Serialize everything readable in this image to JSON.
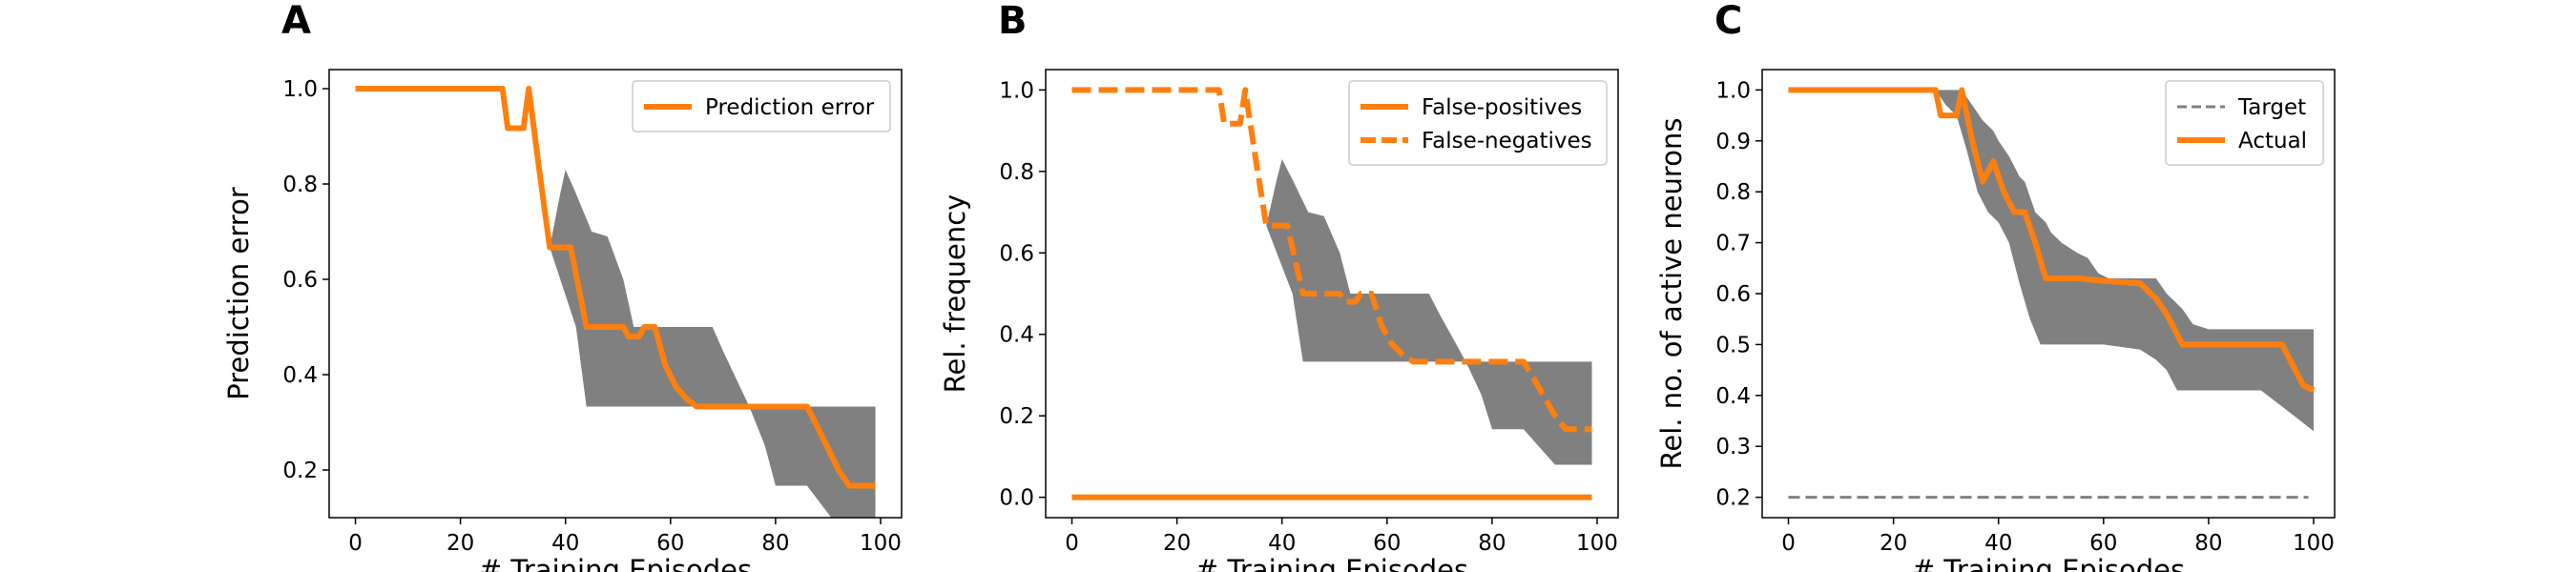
{
  "chart_data": [
    {
      "type": "line",
      "panel": "A",
      "xlabel": "# Training Episodes",
      "ylabel": "Prediction error",
      "xlim": [
        -5,
        104
      ],
      "ylim": [
        0.1,
        1.04
      ],
      "xticks": [
        0,
        20,
        40,
        60,
        80,
        100
      ],
      "xtick_labels": [
        "0",
        "20",
        "40",
        "60",
        "80",
        "100"
      ],
      "yticks": [
        0.2,
        0.4,
        0.6,
        0.8,
        1.0
      ],
      "ytick_labels": [
        "0.2",
        "0.4",
        "0.6",
        "0.8",
        "1.0"
      ],
      "legend_position": "top-right",
      "series": [
        {
          "name": "Prediction error",
          "color": "#ff7f0e",
          "style": "solid",
          "points": [
            [
              0,
              1.0
            ],
            [
              28,
              1.0
            ],
            [
              29,
              0.917
            ],
            [
              32,
              0.917
            ],
            [
              33,
              1.0
            ],
            [
              35,
              0.83
            ],
            [
              37,
              0.667
            ],
            [
              41,
              0.667
            ],
            [
              44,
              0.5
            ],
            [
              51,
              0.5
            ],
            [
              52,
              0.48
            ],
            [
              54,
              0.48
            ],
            [
              55,
              0.5
            ],
            [
              57,
              0.5
            ],
            [
              59,
              0.42
            ],
            [
              61,
              0.375
            ],
            [
              63,
              0.35
            ],
            [
              65,
              0.333
            ],
            [
              70,
              0.333
            ],
            [
              86,
              0.333
            ],
            [
              88,
              0.29
            ],
            [
              92,
              0.2
            ],
            [
              94,
              0.167
            ],
            [
              99,
              0.167
            ]
          ]
        }
      ],
      "bands": [
        {
          "color": "#808080",
          "upper": [
            [
              37,
              0.667
            ],
            [
              39,
              0.78
            ],
            [
              40,
              0.83
            ],
            [
              42,
              0.78
            ],
            [
              45,
              0.7
            ],
            [
              48,
              0.69
            ],
            [
              51,
              0.6
            ],
            [
              53,
              0.5
            ],
            [
              68,
              0.5
            ],
            [
              70,
              0.45
            ],
            [
              75,
              0.333
            ],
            [
              99,
              0.333
            ]
          ],
          "lower": [
            [
              37,
              0.667
            ],
            [
              42,
              0.5
            ],
            [
              44,
              0.333
            ],
            [
              75,
              0.333
            ],
            [
              78,
              0.25
            ],
            [
              80,
              0.167
            ],
            [
              86,
              0.167
            ],
            [
              92,
              0.08
            ],
            [
              99,
              0.08
            ]
          ]
        }
      ]
    },
    {
      "type": "line",
      "panel": "B",
      "xlabel": "# Training Episodes",
      "ylabel": "Rel. frequency",
      "xlim": [
        -5,
        104
      ],
      "ylim": [
        -0.05,
        1.05
      ],
      "xticks": [
        0,
        20,
        40,
        60,
        80,
        100
      ],
      "xtick_labels": [
        "0",
        "20",
        "40",
        "60",
        "80",
        "100"
      ],
      "yticks": [
        0.0,
        0.2,
        0.4,
        0.6,
        0.8,
        1.0
      ],
      "ytick_labels": [
        "0.0",
        "0.2",
        "0.4",
        "0.6",
        "0.8",
        "1.0"
      ],
      "legend_position": "top-right",
      "series": [
        {
          "name": "False-positives",
          "color": "#ff7f0e",
          "style": "solid",
          "points": [
            [
              0,
              0.0
            ],
            [
              99,
              0.0
            ]
          ]
        },
        {
          "name": "False-negatives",
          "color": "#ff7f0e",
          "style": "dashed",
          "points": [
            [
              0,
              1.0
            ],
            [
              28,
              1.0
            ],
            [
              29,
              0.917
            ],
            [
              32,
              0.917
            ],
            [
              33,
              1.0
            ],
            [
              35,
              0.83
            ],
            [
              37,
              0.667
            ],
            [
              41,
              0.667
            ],
            [
              44,
              0.5
            ],
            [
              51,
              0.5
            ],
            [
              52,
              0.48
            ],
            [
              54,
              0.48
            ],
            [
              55,
              0.5
            ],
            [
              57,
              0.5
            ],
            [
              59,
              0.42
            ],
            [
              61,
              0.375
            ],
            [
              63,
              0.35
            ],
            [
              65,
              0.333
            ],
            [
              70,
              0.333
            ],
            [
              86,
              0.333
            ],
            [
              88,
              0.29
            ],
            [
              92,
              0.2
            ],
            [
              94,
              0.167
            ],
            [
              99,
              0.167
            ]
          ]
        }
      ],
      "bands": [
        {
          "color": "#808080",
          "upper": [
            [
              37,
              0.667
            ],
            [
              39,
              0.78
            ],
            [
              40,
              0.83
            ],
            [
              42,
              0.78
            ],
            [
              45,
              0.7
            ],
            [
              48,
              0.69
            ],
            [
              51,
              0.6
            ],
            [
              53,
              0.5
            ],
            [
              68,
              0.5
            ],
            [
              70,
              0.45
            ],
            [
              75,
              0.333
            ],
            [
              99,
              0.333
            ]
          ],
          "lower": [
            [
              37,
              0.667
            ],
            [
              42,
              0.5
            ],
            [
              44,
              0.333
            ],
            [
              75,
              0.333
            ],
            [
              78,
              0.25
            ],
            [
              80,
              0.167
            ],
            [
              86,
              0.167
            ],
            [
              92,
              0.08
            ],
            [
              99,
              0.08
            ]
          ]
        }
      ]
    },
    {
      "type": "line",
      "panel": "C",
      "xlabel": "# Training Episodes",
      "ylabel": "Rel. no. of active neurons",
      "xlim": [
        -5,
        104
      ],
      "ylim": [
        0.16,
        1.04
      ],
      "xticks": [
        0,
        20,
        40,
        60,
        80,
        100
      ],
      "xtick_labels": [
        "0",
        "20",
        "40",
        "60",
        "80",
        "100"
      ],
      "yticks": [
        0.2,
        0.3,
        0.4,
        0.5,
        0.6,
        0.7,
        0.8,
        0.9,
        1.0
      ],
      "ytick_labels": [
        "0.2",
        "0.3",
        "0.4",
        "0.5",
        "0.6",
        "0.7",
        "0.8",
        "0.9",
        "1.0"
      ],
      "legend_position": "top-right",
      "series": [
        {
          "name": "Target",
          "color": "#808080",
          "style": "dashed-thin",
          "points": [
            [
              0,
              0.2
            ],
            [
              99,
              0.2
            ]
          ]
        },
        {
          "name": "Actual",
          "color": "#ff7f0e",
          "style": "solid",
          "points": [
            [
              0,
              1.0
            ],
            [
              28,
              1.0
            ],
            [
              29,
              0.95
            ],
            [
              32,
              0.95
            ],
            [
              33,
              1.0
            ],
            [
              35,
              0.9
            ],
            [
              37,
              0.82
            ],
            [
              39,
              0.86
            ],
            [
              41,
              0.8
            ],
            [
              43,
              0.76
            ],
            [
              45,
              0.76
            ],
            [
              47,
              0.7
            ],
            [
              49,
              0.63
            ],
            [
              55,
              0.63
            ],
            [
              60,
              0.625
            ],
            [
              67,
              0.62
            ],
            [
              70,
              0.59
            ],
            [
              72,
              0.56
            ],
            [
              75,
              0.5
            ],
            [
              80,
              0.5
            ],
            [
              90,
              0.5
            ],
            [
              94,
              0.5
            ],
            [
              96,
              0.46
            ],
            [
              98,
              0.42
            ],
            [
              100,
              0.41
            ]
          ]
        }
      ],
      "bands": [
        {
          "color": "#808080",
          "upper": [
            [
              28,
              1.0
            ],
            [
              31,
              1.0
            ],
            [
              33,
              1.0
            ],
            [
              35,
              0.97
            ],
            [
              37,
              0.94
            ],
            [
              39,
              0.92
            ],
            [
              40,
              0.9
            ],
            [
              42,
              0.87
            ],
            [
              44,
              0.83
            ],
            [
              45,
              0.82
            ],
            [
              47,
              0.76
            ],
            [
              49,
              0.74
            ],
            [
              50,
              0.72
            ],
            [
              52,
              0.7
            ],
            [
              55,
              0.68
            ],
            [
              57,
              0.67
            ],
            [
              59,
              0.64
            ],
            [
              61,
              0.63
            ],
            [
              70,
              0.63
            ],
            [
              72,
              0.6
            ],
            [
              75,
              0.57
            ],
            [
              77,
              0.54
            ],
            [
              80,
              0.53
            ],
            [
              100,
              0.53
            ]
          ],
          "lower": [
            [
              28,
              1.0
            ],
            [
              30,
              0.97
            ],
            [
              32,
              0.95
            ],
            [
              34,
              0.88
            ],
            [
              36,
              0.8
            ],
            [
              38,
              0.76
            ],
            [
              40,
              0.74
            ],
            [
              42,
              0.7
            ],
            [
              44,
              0.62
            ],
            [
              46,
              0.55
            ],
            [
              48,
              0.5
            ],
            [
              52,
              0.5
            ],
            [
              60,
              0.5
            ],
            [
              67,
              0.49
            ],
            [
              70,
              0.47
            ],
            [
              72,
              0.45
            ],
            [
              74,
              0.41
            ],
            [
              80,
              0.41
            ],
            [
              90,
              0.41
            ],
            [
              95,
              0.37
            ],
            [
              100,
              0.33
            ]
          ]
        }
      ]
    }
  ]
}
